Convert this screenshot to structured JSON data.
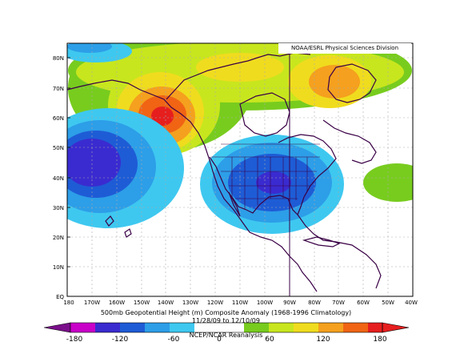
{
  "credit": "NOAA/ESRL Physical Sciences Division",
  "title": "500mb Geopotential Height (m) Composite Anomaly (1968-1996 Climatology)",
  "date_range": "11/28/09 to 12/10/09",
  "source": "NCEP/NCAR Reanalysis",
  "lat_labels": [
    "EQ",
    "10N",
    "20N",
    "30N",
    "40N",
    "50N",
    "60N",
    "70N",
    "80N"
  ],
  "lon_labels": [
    "180",
    "170W",
    "160W",
    "150W",
    "140W",
    "130W",
    "120W",
    "110W",
    "100W",
    "90W",
    "80W",
    "70W",
    "60W",
    "50W",
    "40W"
  ],
  "colorbar": {
    "labels": [
      "-180",
      "-120",
      "-60",
      "0",
      "60",
      "120",
      "180"
    ],
    "colors": [
      "#7a0f8a",
      "#c800c8",
      "#3a2bd0",
      "#1e5cd6",
      "#2d9ee8",
      "#3ec8f0",
      "#ffffff",
      "#ffffff",
      "#78cc1e",
      "#c8e61e",
      "#f0dc1e",
      "#f5a01e",
      "#f06414",
      "#e61e1e"
    ]
  },
  "map": {
    "lon_range": [
      -180,
      -40
    ],
    "lat_range": [
      0,
      85
    ],
    "anomaly_centers": [
      {
        "lon": -140,
        "lat": 62,
        "value": 200
      },
      {
        "lon": -100,
        "lat": 72,
        "value": 120
      },
      {
        "lon": -62,
        "lat": 68,
        "value": 120
      },
      {
        "lon": -170,
        "lat": 41,
        "value": -160
      },
      {
        "lon": -97,
        "lat": 38,
        "value": -140
      },
      {
        "lon": -165,
        "lat": 84,
        "value": -70
      },
      {
        "lon": -44,
        "lat": 39,
        "value": 60
      }
    ]
  }
}
